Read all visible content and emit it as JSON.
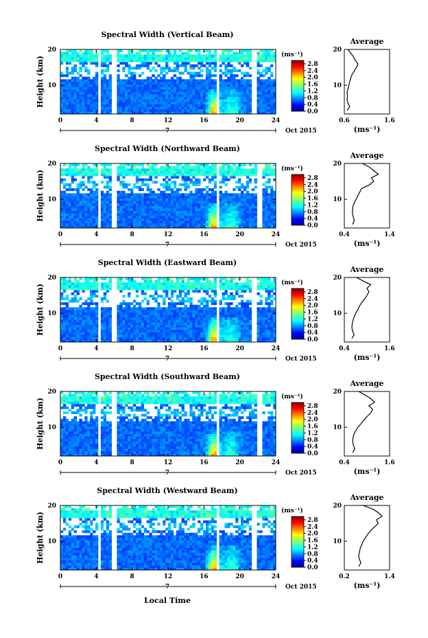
{
  "figure": {
    "xlabel": "Local Time",
    "date_label": "Oct 2015",
    "day_label": "7",
    "colorbar_unit": "(ms⁻¹)",
    "colorbar_ticks": [
      "2.8",
      "2.4",
      "2.0",
      "1.6",
      "1.2",
      "0.8",
      "0.4",
      "0.0"
    ],
    "avg_title": "Average",
    "avg_xlabel": "(ms⁻¹)",
    "ylabel": "Height (km)"
  },
  "chart_data": [
    {
      "type": "heatmap",
      "title": "Spectral Width (Vertical Beam)",
      "xlabel": "Local Time",
      "ylabel": "Height (km)",
      "xlim": [
        0,
        24
      ],
      "ylim": [
        2,
        20
      ],
      "xticks": [
        0,
        4,
        8,
        12,
        16,
        20,
        24
      ],
      "yticks": [
        10,
        20
      ],
      "colorbar": {
        "label": "(ms⁻¹)",
        "min": 0.0,
        "max": 3.0,
        "ticks": [
          0.0,
          0.4,
          0.8,
          1.2,
          1.6,
          2.0,
          2.4,
          2.8
        ]
      },
      "data_gaps_hours": [
        [
          4.2,
          4.5
        ],
        [
          5.8,
          6.2
        ],
        [
          17.3,
          17.6
        ],
        [
          21.4,
          21.8
        ]
      ],
      "average_profile": {
        "title": "Average",
        "xlabel": "(ms⁻¹)",
        "xlim": [
          0.6,
          1.6
        ],
        "xticks": [
          0.6,
          1.6
        ],
        "yticks": [
          10,
          20
        ],
        "height_km": [
          3,
          4,
          5,
          6,
          7,
          8,
          9,
          10,
          11,
          12,
          13,
          14,
          15,
          16,
          17,
          18,
          19,
          20
        ],
        "width_ms": [
          0.66,
          0.72,
          0.68,
          0.66,
          0.67,
          0.66,
          0.68,
          0.7,
          0.72,
          0.74,
          0.77,
          0.82,
          0.87,
          0.9,
          0.84,
          0.8,
          0.74,
          0.68
        ]
      }
    },
    {
      "type": "heatmap",
      "title": "Spectral Width (Northward Beam)",
      "xlabel": "Local Time",
      "ylabel": "Height (km)",
      "xlim": [
        0,
        24
      ],
      "ylim": [
        2,
        20
      ],
      "xticks": [
        0,
        4,
        8,
        12,
        16,
        20,
        24
      ],
      "yticks": [
        10,
        20
      ],
      "colorbar": {
        "label": "(ms⁻¹)",
        "min": 0.0,
        "max": 3.0,
        "ticks": [
          0.0,
          0.4,
          0.8,
          1.2,
          1.6,
          2.0,
          2.4,
          2.8
        ]
      },
      "data_gaps_hours": [
        [
          4.2,
          4.5
        ],
        [
          5.8,
          6.2
        ],
        [
          17.3,
          17.6
        ],
        [
          21.9,
          22.4
        ]
      ],
      "average_profile": {
        "title": "Average",
        "xlabel": "(ms⁻¹)",
        "xlim": [
          0.4,
          1.4
        ],
        "xticks": [
          0.4,
          1.4
        ],
        "yticks": [
          10,
          20
        ],
        "height_km": [
          3,
          4,
          5,
          6,
          7,
          8,
          9,
          10,
          11,
          12,
          13,
          14,
          15,
          16,
          17,
          18,
          19,
          20
        ],
        "width_ms": [
          0.58,
          0.62,
          0.6,
          0.58,
          0.58,
          0.59,
          0.62,
          0.66,
          0.7,
          0.74,
          0.78,
          0.95,
          1.05,
          1.0,
          1.15,
          1.05,
          0.95,
          0.8
        ]
      }
    },
    {
      "type": "heatmap",
      "title": "Spectral Width (Eastward Beam)",
      "xlabel": "Local Time",
      "ylabel": "Height (km)",
      "xlim": [
        0,
        24
      ],
      "ylim": [
        2,
        20
      ],
      "xticks": [
        0,
        4,
        8,
        12,
        16,
        20,
        24
      ],
      "yticks": [
        10,
        20
      ],
      "colorbar": {
        "label": "(ms⁻¹)",
        "min": 0.0,
        "max": 3.0,
        "ticks": [
          0.0,
          0.4,
          0.8,
          1.2,
          1.6,
          2.0,
          2.4,
          2.8
        ]
      },
      "data_gaps_hours": [
        [
          4.2,
          4.5
        ],
        [
          5.8,
          6.2
        ],
        [
          17.3,
          17.6
        ],
        [
          21.4,
          21.8
        ]
      ],
      "average_profile": {
        "title": "Average",
        "xlabel": "(ms⁻¹)",
        "xlim": [
          0.4,
          1.6
        ],
        "xticks": [
          0.4,
          1.6
        ],
        "yticks": [
          10,
          20
        ],
        "height_km": [
          3,
          4,
          5,
          6,
          7,
          8,
          9,
          10,
          11,
          12,
          13,
          14,
          15,
          16,
          17,
          18,
          19,
          20
        ],
        "width_ms": [
          0.6,
          0.66,
          0.62,
          0.6,
          0.61,
          0.63,
          0.66,
          0.7,
          0.76,
          0.8,
          0.86,
          0.94,
          1.0,
          1.05,
          1.0,
          1.1,
          0.9,
          0.72
        ]
      }
    },
    {
      "type": "heatmap",
      "title": "Spectral Width (Southward Beam)",
      "xlabel": "Local Time",
      "ylabel": "Height (km)",
      "xlim": [
        0,
        24
      ],
      "ylim": [
        2,
        20
      ],
      "xticks": [
        0,
        4,
        8,
        12,
        16,
        20,
        24
      ],
      "yticks": [
        10,
        20
      ],
      "colorbar": {
        "label": "(ms⁻¹)",
        "min": 0.0,
        "max": 3.0,
        "ticks": [
          0.0,
          0.4,
          0.8,
          1.2,
          1.6,
          2.0,
          2.4,
          2.8
        ]
      },
      "data_gaps_hours": [
        [
          4.2,
          4.5
        ],
        [
          5.8,
          6.2
        ],
        [
          17.3,
          17.6
        ],
        [
          21.9,
          22.4
        ]
      ],
      "average_profile": {
        "title": "Average",
        "xlabel": "(ms⁻¹)",
        "xlim": [
          0.4,
          1.6
        ],
        "xticks": [
          0.4,
          1.6
        ],
        "yticks": [
          10,
          20
        ],
        "height_km": [
          3,
          4,
          5,
          6,
          7,
          8,
          9,
          10,
          11,
          12,
          13,
          14,
          15,
          16,
          17,
          18,
          19,
          20
        ],
        "width_ms": [
          0.62,
          0.68,
          0.64,
          0.62,
          0.63,
          0.65,
          0.7,
          0.76,
          0.84,
          0.92,
          1.0,
          1.1,
          1.15,
          1.05,
          1.2,
          1.1,
          0.95,
          0.78
        ]
      }
    },
    {
      "type": "heatmap",
      "title": "Spectral Width (Westward Beam)",
      "xlabel": "Local Time",
      "ylabel": "Height (km)",
      "xlim": [
        0,
        24
      ],
      "ylim": [
        2,
        20
      ],
      "xticks": [
        0,
        4,
        8,
        12,
        16,
        20,
        24
      ],
      "yticks": [
        10,
        20
      ],
      "colorbar": {
        "label": "(ms⁻¹)",
        "min": 0.0,
        "max": 3.0,
        "ticks": [
          0.0,
          0.4,
          0.8,
          1.2,
          1.6,
          2.0,
          2.4,
          2.8
        ]
      },
      "data_gaps_hours": [
        [
          4.2,
          4.5
        ],
        [
          5.8,
          6.2
        ],
        [
          17.3,
          17.6
        ],
        [
          21.4,
          21.8
        ]
      ],
      "average_profile": {
        "title": "Average",
        "xlabel": "(ms⁻¹)",
        "xlim": [
          0.2,
          1.4
        ],
        "xticks": [
          0.2,
          1.4
        ],
        "yticks": [
          10,
          20
        ],
        "height_km": [
          3,
          4,
          5,
          6,
          7,
          8,
          9,
          10,
          11,
          12,
          13,
          14,
          15,
          16,
          17,
          18,
          19,
          20
        ],
        "width_ms": [
          0.58,
          0.64,
          0.6,
          0.58,
          0.6,
          0.62,
          0.66,
          0.7,
          0.76,
          0.82,
          0.9,
          1.0,
          1.1,
          1.05,
          1.2,
          1.1,
          0.95,
          0.7
        ]
      }
    }
  ]
}
